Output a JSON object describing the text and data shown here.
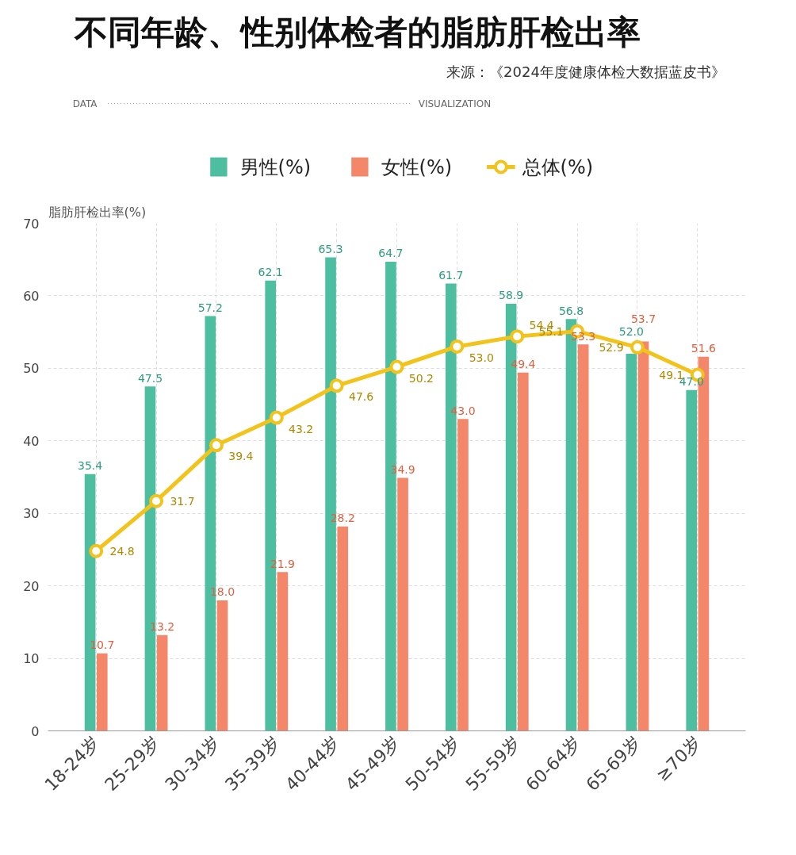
{
  "chart_data": {
    "type": "bar",
    "title": "不同年龄、性别体检者的脂肪肝检出率",
    "ylabel": "脂肪肝检出率(%)",
    "annotations": [
      "来源：《2024年度健康体检大数据蓝皮书》",
      "DATA",
      "VISUALIZATION"
    ],
    "categories": [
      "18-24岁",
      "25-29岁",
      "30-34岁",
      "35-39岁",
      "40-44岁",
      "45-49岁",
      "50-54岁",
      "55-59岁",
      "60-64岁",
      "65-69岁",
      "≥70岁"
    ],
    "series": [
      {
        "name": "男性(%)",
        "color": "#4dbfa0",
        "values": [
          35.4,
          47.5,
          57.2,
          62.1,
          65.3,
          64.7,
          61.7,
          58.9,
          56.8,
          52.0,
          47.0
        ],
        "value_labels": [
          "35.4",
          "47.5",
          "57.2",
          "62.1",
          "65.3",
          "64.7",
          "61.7",
          "58.9",
          "56.8",
          "52.0",
          "47.0"
        ]
      },
      {
        "name": "女性(%)",
        "color": "#f4866a",
        "values": [
          10.7,
          13.2,
          18.0,
          21.9,
          28.2,
          34.9,
          43.0,
          49.4,
          53.3,
          53.7,
          51.6
        ],
        "value_labels": [
          "10.7",
          "13.2",
          "18.0",
          "21.9",
          "28.2",
          "34.9",
          "43.0",
          "49.4",
          "53.3",
          "53.7",
          "51.6"
        ]
      },
      {
        "name": "总体(%)",
        "type": "line",
        "color": "#f2c31b",
        "values": [
          24.8,
          31.7,
          39.4,
          43.2,
          47.6,
          50.2,
          53.0,
          54.4,
          55.1,
          52.9,
          49.1
        ],
        "value_labels": [
          "24.8",
          "31.7",
          "39.4",
          "43.2",
          "47.6",
          "50.2",
          "53.0",
          "54.4",
          "55.1",
          "52.9",
          "49.1"
        ]
      }
    ],
    "ylim": [
      0,
      70
    ],
    "yticks": [
      0,
      10,
      20,
      30,
      40,
      50,
      60,
      70
    ],
    "grid": true,
    "legend": "top",
    "marker": "circle",
    "line_style": "solid"
  }
}
